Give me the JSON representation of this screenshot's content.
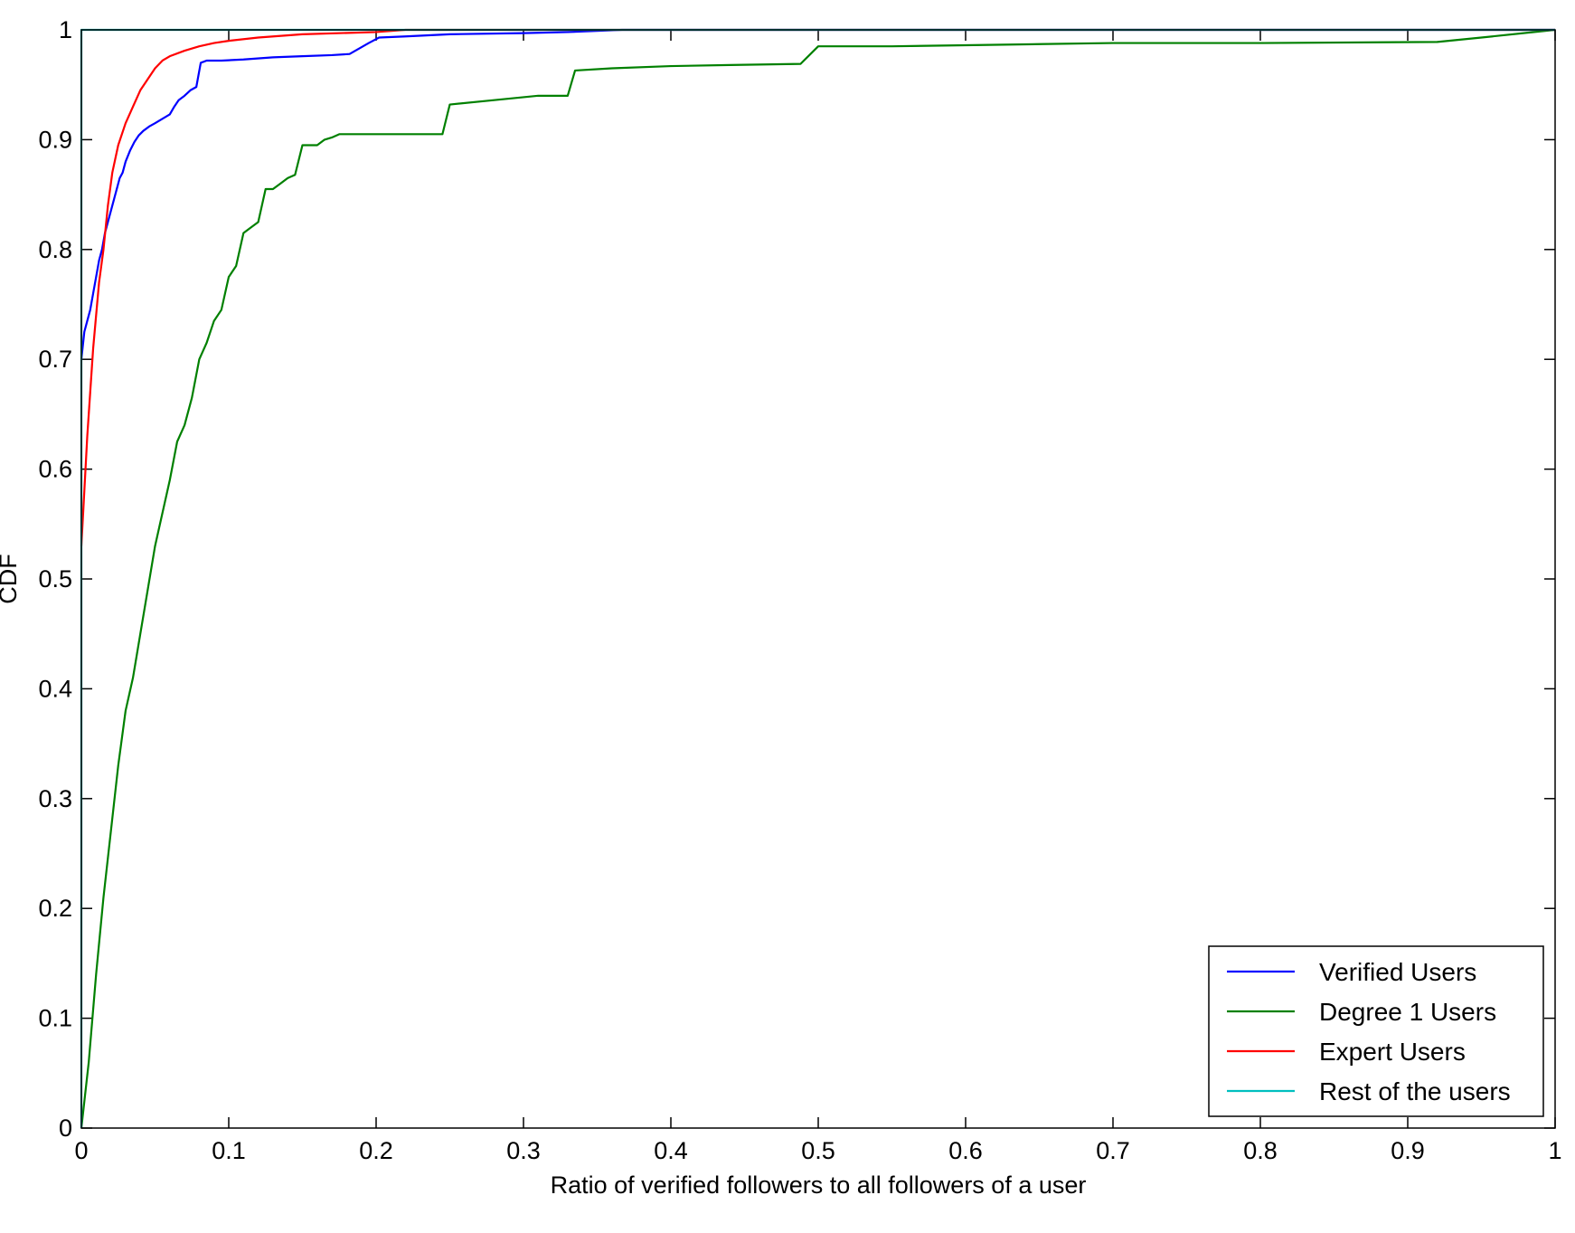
{
  "chart_data": {
    "type": "line",
    "title": "",
    "xlabel": "Ratio of verified followers to all followers of a user",
    "ylabel": "CDF",
    "xlim": [
      0,
      1
    ],
    "ylim": [
      0,
      1
    ],
    "x_ticks": [
      {
        "value": 0,
        "label": "0"
      },
      {
        "value": 0.1,
        "label": "0.1"
      },
      {
        "value": 0.2,
        "label": "0.2"
      },
      {
        "value": 0.3,
        "label": "0.3"
      },
      {
        "value": 0.4,
        "label": "0.4"
      },
      {
        "value": 0.5,
        "label": "0.5"
      },
      {
        "value": 0.6,
        "label": "0.6"
      },
      {
        "value": 0.7,
        "label": "0.7"
      },
      {
        "value": 0.8,
        "label": "0.8"
      },
      {
        "value": 0.9,
        "label": "0.9"
      },
      {
        "value": 1,
        "label": "1"
      }
    ],
    "y_ticks": [
      {
        "value": 0,
        "label": "0"
      },
      {
        "value": 0.1,
        "label": "0.1"
      },
      {
        "value": 0.2,
        "label": "0.2"
      },
      {
        "value": 0.3,
        "label": "0.3"
      },
      {
        "value": 0.4,
        "label": "0.4"
      },
      {
        "value": 0.5,
        "label": "0.5"
      },
      {
        "value": 0.6,
        "label": "0.6"
      },
      {
        "value": 0.7,
        "label": "0.7"
      },
      {
        "value": 0.8,
        "label": "0.8"
      },
      {
        "value": 0.9,
        "label": "0.9"
      },
      {
        "value": 1,
        "label": "1"
      }
    ],
    "grid": false,
    "legend_position": "bottom-right",
    "series": [
      {
        "name": "Verified Users",
        "color": "#0000ff",
        "x": [
          0,
          0,
          0.002,
          0.004,
          0.006,
          0.008,
          0.01,
          0.012,
          0.014,
          0.016,
          0.018,
          0.02,
          0.022,
          0.024,
          0.026,
          0.028,
          0.03,
          0.033,
          0.036,
          0.039,
          0.042,
          0.046,
          0.05,
          0.055,
          0.06,
          0.063,
          0.066,
          0.07,
          0.074,
          0.078,
          0.081,
          0.085,
          0.095,
          0.11,
          0.13,
          0.15,
          0.17,
          0.182,
          0.195,
          0.202,
          0.22,
          0.25,
          0.3,
          0.33,
          0.367,
          1
        ],
        "y": [
          0.7,
          0.7,
          0.725,
          0.735,
          0.745,
          0.76,
          0.775,
          0.79,
          0.8,
          0.815,
          0.825,
          0.835,
          0.845,
          0.855,
          0.865,
          0.87,
          0.88,
          0.89,
          0.898,
          0.904,
          0.908,
          0.912,
          0.915,
          0.919,
          0.923,
          0.93,
          0.936,
          0.94,
          0.945,
          0.948,
          0.97,
          0.972,
          0.972,
          0.973,
          0.975,
          0.976,
          0.977,
          0.978,
          0.988,
          0.993,
          0.994,
          0.996,
          0.997,
          0.998,
          1.0,
          1.0
        ]
      },
      {
        "name": "Degree 1 Users",
        "color": "#008000",
        "x": [
          0,
          0.005,
          0.01,
          0.015,
          0.02,
          0.025,
          0.03,
          0.035,
          0.04,
          0.045,
          0.05,
          0.055,
          0.06,
          0.065,
          0.07,
          0.075,
          0.08,
          0.085,
          0.09,
          0.095,
          0.1,
          0.105,
          0.11,
          0.115,
          0.12,
          0.125,
          0.13,
          0.135,
          0.14,
          0.145,
          0.15,
          0.155,
          0.16,
          0.165,
          0.17,
          0.175,
          0.18,
          0.185,
          0.19,
          0.195,
          0.2,
          0.205,
          0.21,
          0.215,
          0.22,
          0.225,
          0.23,
          0.235,
          0.24,
          0.245,
          0.25,
          0.28,
          0.31,
          0.33,
          0.335,
          0.36,
          0.4,
          0.44,
          0.488,
          0.5,
          0.501,
          0.55,
          0.6,
          0.65,
          0.7,
          0.8,
          0.92,
          0.95,
          1.0
        ],
        "y": [
          0,
          0.06,
          0.14,
          0.21,
          0.27,
          0.33,
          0.38,
          0.41,
          0.45,
          0.49,
          0.53,
          0.56,
          0.59,
          0.625,
          0.64,
          0.665,
          0.7,
          0.715,
          0.735,
          0.745,
          0.775,
          0.785,
          0.815,
          0.82,
          0.825,
          0.855,
          0.855,
          0.86,
          0.865,
          0.868,
          0.895,
          0.895,
          0.895,
          0.9,
          0.902,
          0.905,
          0.905,
          0.905,
          0.905,
          0.905,
          0.905,
          0.905,
          0.905,
          0.905,
          0.905,
          0.905,
          0.905,
          0.905,
          0.905,
          0.905,
          0.932,
          0.936,
          0.94,
          0.94,
          0.963,
          0.965,
          0.967,
          0.968,
          0.969,
          0.985,
          0.985,
          0.985,
          0.986,
          0.987,
          0.988,
          0.988,
          0.989,
          0.993,
          1.0
        ]
      },
      {
        "name": "Expert Users",
        "color": "#ff0000",
        "x": [
          0,
          0.002,
          0.004,
          0.006,
          0.008,
          0.01,
          0.012,
          0.015,
          0.018,
          0.021,
          0.025,
          0.03,
          0.035,
          0.04,
          0.045,
          0.05,
          0.055,
          0.06,
          0.07,
          0.08,
          0.09,
          0.1,
          0.12,
          0.15,
          0.2,
          0.22,
          1.0
        ],
        "y": [
          0.53,
          0.58,
          0.63,
          0.67,
          0.71,
          0.74,
          0.77,
          0.8,
          0.84,
          0.87,
          0.895,
          0.915,
          0.93,
          0.945,
          0.955,
          0.965,
          0.972,
          0.976,
          0.981,
          0.985,
          0.988,
          0.99,
          0.993,
          0.996,
          0.998,
          1.0,
          1.0
        ]
      },
      {
        "name": "Rest of the users",
        "color": "#00bfbf",
        "x": [
          0,
          0,
          1.0
        ],
        "y": [
          0,
          1.0,
          1.0
        ]
      }
    ]
  }
}
